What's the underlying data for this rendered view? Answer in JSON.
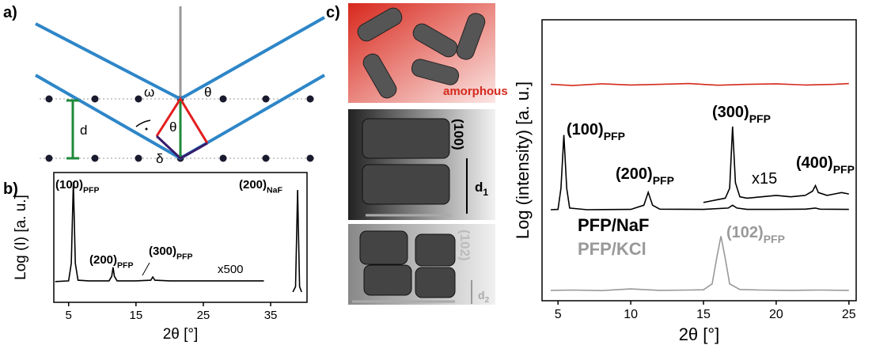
{
  "panel_labels": [
    "a)",
    "b)",
    "c)"
  ],
  "diagram": {
    "labels": [
      "ω",
      "θ",
      "θ",
      "d",
      "δ"
    ]
  },
  "images": [
    {
      "label": "amorphous"
    },
    {
      "label": "(100)",
      "spacing": "d",
      "spacing_sub": "1"
    },
    {
      "label": "(102)",
      "spacing": "d",
      "spacing_sub": "2"
    }
  ],
  "chart_data": [
    {
      "type": "line",
      "x_label": "2θ [°]",
      "y_label": "Log (I) [a. u.]",
      "xlim": [
        2.8,
        40.4
      ],
      "xticks": [
        5,
        15,
        25,
        35
      ],
      "ylim": [
        0,
        100
      ],
      "series": [
        {
          "color": "#000000",
          "x": [
            3,
            5,
            5.4,
            5.7,
            6,
            6.4,
            8,
            11,
            11.4,
            11.6,
            11.8,
            12.2,
            15,
            17.2,
            17.5,
            17.8,
            20,
            25,
            30,
            34,
            36,
            38.3,
            38.7,
            39,
            39.3,
            39.6
          ],
          "values": [
            16,
            16.5,
            30,
            92.7,
            30,
            17,
            16.5,
            16.5,
            20,
            27,
            20,
            16.5,
            16.5,
            17,
            19.5,
            17,
            16.5,
            16.5,
            16.5,
            16.5,
            null,
            8,
            12,
            86.6,
            12,
            8
          ]
        }
      ],
      "annotations": [
        {
          "text": "(100)",
          "sub": "PFP"
        },
        {
          "text": "(200)",
          "sub": "PFP"
        },
        {
          "text": "(300)",
          "sub": "PFP"
        },
        {
          "text": "(200)",
          "sub": "NaF"
        },
        {
          "text": "x500"
        }
      ]
    },
    {
      "type": "line",
      "x_label": "2θ [°]",
      "y_label": "Log (intensity) [a. u.]",
      "xlim": [
        3.9,
        25.5
      ],
      "xticks": [
        5,
        10,
        15,
        20,
        25
      ],
      "ylim": [
        0,
        100
      ],
      "series": [
        {
          "color": "#d42a1e",
          "x": [
            4.5,
            6,
            8,
            10,
            12,
            14,
            16,
            18,
            20,
            22,
            24,
            25
          ],
          "values": [
            77,
            76.6,
            77.2,
            76.8,
            77,
            77.3,
            76.7,
            77,
            77.2,
            76.8,
            77,
            77.3
          ]
        },
        {
          "name": "PFP/NaF",
          "color": "#000000",
          "x": [
            4.5,
            5,
            5.2,
            5.4,
            5.6,
            5.8,
            7,
            10,
            10.9,
            11.2,
            11.5,
            12,
            15,
            16.7,
            17,
            17.3,
            18,
            20,
            22,
            22.7,
            23,
            25
          ],
          "values": [
            32.4,
            32.5,
            40,
            59,
            40,
            33,
            32.4,
            32.5,
            34,
            38.6,
            34,
            32.6,
            32.5,
            33,
            34,
            33,
            32.5,
            32.5,
            32.6,
            33,
            32.6,
            32.5
          ]
        },
        {
          "color": "#000000",
          "x": [
            15,
            15.5,
            16,
            16.5,
            16.8,
            17,
            17.2,
            17.5,
            18,
            19,
            20,
            21,
            22,
            22.5,
            22.7,
            22.9,
            23.5,
            24,
            24.5,
            25
          ],
          "values": [
            35,
            35.5,
            36,
            36.5,
            40,
            62,
            42,
            37,
            36.5,
            37,
            37.5,
            37,
            37.5,
            39,
            41,
            38.5,
            37.5,
            38,
            38.5,
            38
          ]
        },
        {
          "name": "PFP/KCl",
          "color": "#999999",
          "x": [
            4.5,
            6,
            8,
            10,
            12,
            14,
            15,
            15.6,
            15.9,
            16.2,
            16.5,
            16.8,
            17.5,
            19,
            21,
            23,
            25
          ],
          "values": [
            3.7,
            3.8,
            3.6,
            4.2,
            3.7,
            3.8,
            3.9,
            6,
            15,
            23,
            15,
            6,
            4,
            3.8,
            3.7,
            3.8,
            3.7
          ]
        }
      ],
      "annotations": [
        {
          "text": "(100)",
          "sub": "PFP"
        },
        {
          "text": "(200)",
          "sub": "PFP"
        },
        {
          "text": "(300)",
          "sub": "PFP"
        },
        {
          "text": "(400)",
          "sub": "PFP"
        },
        {
          "text": "(102)",
          "sub": "PFP"
        },
        {
          "text": "x15"
        }
      ]
    }
  ]
}
